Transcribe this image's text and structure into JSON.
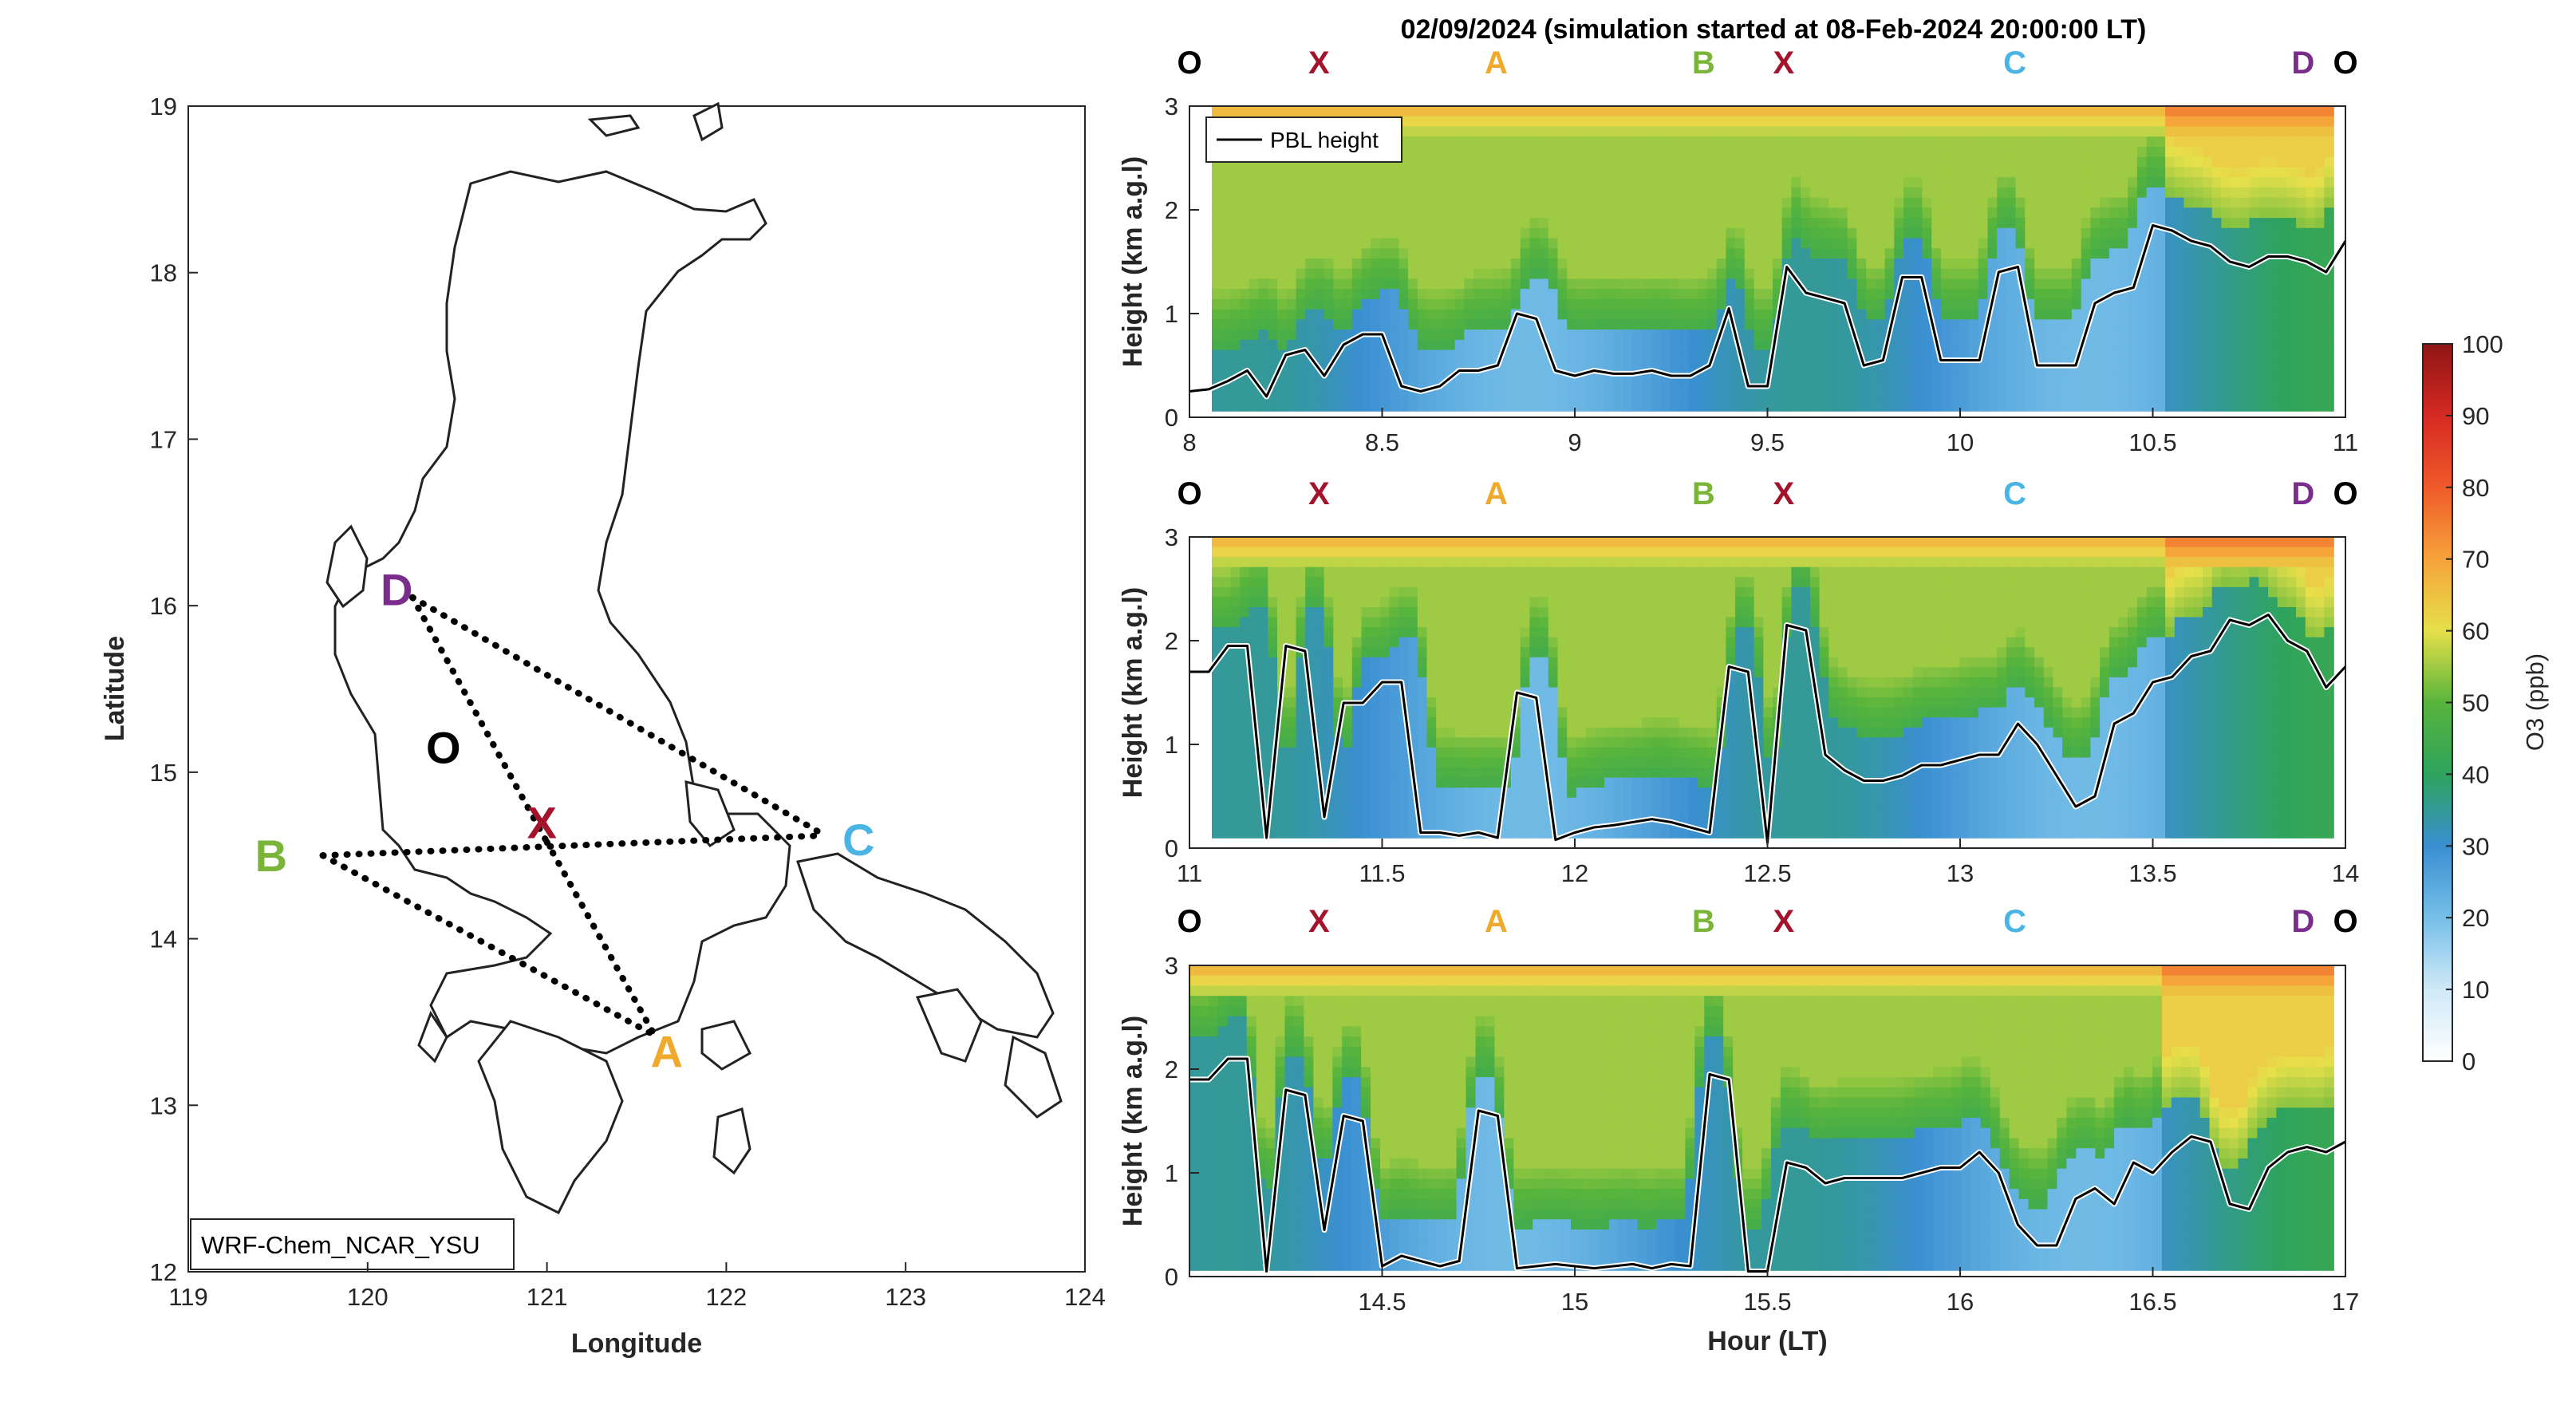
{
  "figure": {
    "title": "02/09/2024 (simulation started at 08-Feb-2024 20:00:00 LT)",
    "model_label": "WRF-Chem_NCAR_YSU",
    "legend_label": "PBL height"
  },
  "map": {
    "xlabel": "Longitude",
    "ylabel": "Latitude",
    "xlim": [
      119,
      124
    ],
    "ylim": [
      12,
      19
    ],
    "xticks": [
      "119",
      "120",
      "121",
      "122",
      "123",
      "124"
    ],
    "yticks": [
      "12",
      "13",
      "14",
      "15",
      "16",
      "17",
      "18",
      "19"
    ],
    "points": [
      {
        "name": "D",
        "lon": 120.25,
        "lat": 16.05,
        "color": "#7b2d8e"
      },
      {
        "name": "O",
        "lon": 120.45,
        "lat": 15.15,
        "color": "#000000"
      },
      {
        "name": "X",
        "lon": 121.0,
        "lat": 14.58,
        "color": "#a3142c"
      },
      {
        "name": "B",
        "lon": 119.75,
        "lat": 14.5,
        "color": "#7ab539"
      },
      {
        "name": "C",
        "lon": 122.55,
        "lat": 14.62,
        "color": "#4ab4e4"
      },
      {
        "name": "A",
        "lon": 121.6,
        "lat": 13.42,
        "color": "#f0a92a"
      }
    ],
    "routes": [
      [
        "D",
        "C"
      ],
      [
        "D",
        "X"
      ],
      [
        "B",
        "C"
      ],
      [
        "B",
        "A"
      ],
      [
        "X",
        "A"
      ]
    ]
  },
  "colorbar": {
    "label": "O3 (ppb)",
    "ticks": [
      "0",
      "10",
      "20",
      "30",
      "40",
      "50",
      "60",
      "70",
      "80",
      "90",
      "100"
    ],
    "range": [
      0,
      100
    ]
  },
  "route_labels": [
    {
      "text": "O",
      "color": "#000000",
      "frac": 0.0
    },
    {
      "text": "X",
      "color": "#a3142c",
      "frac": 0.168
    },
    {
      "text": "A",
      "color": "#f0a92a",
      "frac": 0.398
    },
    {
      "text": "B",
      "color": "#7ab539",
      "frac": 0.667
    },
    {
      "text": "X",
      "color": "#a3142c",
      "frac": 0.771
    },
    {
      "text": "C",
      "color": "#4ab4e4",
      "frac": 1.071
    },
    {
      "text": "D",
      "color": "#7b2d8e",
      "frac": 1.445
    },
    {
      "text": "O",
      "color": "#000000",
      "frac": 1.5
    }
  ],
  "chart_data": [
    {
      "type": "heatmap",
      "ylabel": "Height (km a.g.l)",
      "xlim": [
        8,
        11
      ],
      "ylim": [
        0,
        3
      ],
      "xticks": [
        "8",
        "8.5",
        "9",
        "9.5",
        "10",
        "10.5",
        "11"
      ],
      "yticks": [
        "0",
        "1",
        "2",
        "3"
      ],
      "series": [
        {
          "name": "PBL height",
          "x": [
            8.0,
            8.05,
            8.1,
            8.15,
            8.2,
            8.25,
            8.3,
            8.35,
            8.4,
            8.45,
            8.5,
            8.55,
            8.6,
            8.65,
            8.7,
            8.75,
            8.8,
            8.85,
            8.9,
            8.95,
            9.0,
            9.05,
            9.1,
            9.15,
            9.2,
            9.25,
            9.3,
            9.35,
            9.4,
            9.45,
            9.5,
            9.55,
            9.6,
            9.65,
            9.7,
            9.75,
            9.8,
            9.85,
            9.9,
            9.95,
            10.0,
            10.05,
            10.1,
            10.15,
            10.2,
            10.25,
            10.3,
            10.35,
            10.4,
            10.45,
            10.5,
            10.55,
            10.6,
            10.65,
            10.7,
            10.75,
            10.8,
            10.85,
            10.9,
            10.95,
            11.0
          ],
          "y": [
            0.25,
            0.27,
            0.35,
            0.45,
            0.2,
            0.6,
            0.65,
            0.4,
            0.7,
            0.8,
            0.8,
            0.3,
            0.25,
            0.3,
            0.45,
            0.45,
            0.5,
            1.0,
            0.95,
            0.45,
            0.4,
            0.45,
            0.42,
            0.42,
            0.45,
            0.4,
            0.4,
            0.5,
            1.05,
            0.3,
            0.3,
            1.45,
            1.2,
            1.15,
            1.1,
            0.5,
            0.55,
            1.35,
            1.35,
            0.55,
            0.55,
            0.55,
            1.4,
            1.45,
            0.5,
            0.5,
            0.5,
            1.1,
            1.2,
            1.25,
            1.85,
            1.8,
            1.7,
            1.65,
            1.5,
            1.45,
            1.55,
            1.55,
            1.5,
            1.4,
            1.7
          ]
        }
      ]
    },
    {
      "type": "heatmap",
      "ylabel": "Height (km a.g.l)",
      "xlim": [
        11,
        14
      ],
      "ylim": [
        0,
        3
      ],
      "xticks": [
        "11",
        "11.5",
        "12",
        "12.5",
        "13",
        "13.5",
        "14"
      ],
      "yticks": [
        "0",
        "1",
        "2",
        "3"
      ],
      "series": [
        {
          "name": "PBL height",
          "x": [
            11.0,
            11.05,
            11.1,
            11.15,
            11.2,
            11.25,
            11.3,
            11.35,
            11.4,
            11.45,
            11.5,
            11.55,
            11.6,
            11.65,
            11.7,
            11.75,
            11.8,
            11.85,
            11.9,
            11.95,
            12.0,
            12.05,
            12.1,
            12.15,
            12.2,
            12.25,
            12.3,
            12.35,
            12.4,
            12.45,
            12.5,
            12.55,
            12.6,
            12.65,
            12.7,
            12.75,
            12.8,
            12.85,
            12.9,
            12.95,
            13.0,
            13.05,
            13.1,
            13.15,
            13.2,
            13.25,
            13.3,
            13.35,
            13.4,
            13.45,
            13.5,
            13.55,
            13.6,
            13.65,
            13.7,
            13.75,
            13.8,
            13.85,
            13.9,
            13.95,
            14.0
          ],
          "y": [
            1.7,
            1.7,
            1.95,
            1.95,
            0.1,
            1.95,
            1.9,
            0.3,
            1.4,
            1.4,
            1.6,
            1.6,
            0.15,
            0.15,
            0.12,
            0.15,
            0.1,
            1.5,
            1.45,
            0.08,
            0.15,
            0.2,
            0.22,
            0.25,
            0.28,
            0.25,
            0.2,
            0.15,
            1.75,
            1.7,
            0.05,
            2.15,
            2.1,
            0.9,
            0.75,
            0.65,
            0.65,
            0.7,
            0.8,
            0.8,
            0.85,
            0.9,
            0.9,
            1.2,
            1.0,
            0.7,
            0.4,
            0.5,
            1.2,
            1.3,
            1.6,
            1.65,
            1.85,
            1.9,
            2.2,
            2.15,
            2.25,
            2.0,
            1.9,
            1.55,
            1.75
          ]
        }
      ]
    },
    {
      "type": "heatmap",
      "ylabel": "Height (km a.g.l)",
      "xlabel": "Hour (LT)",
      "xlim": [
        14,
        17
      ],
      "ylim": [
        0,
        3
      ],
      "xticks": [
        "14.5",
        "15",
        "15.5",
        "16",
        "16.5",
        "17"
      ],
      "yticks": [
        "0",
        "1",
        "2",
        "3"
      ],
      "series": [
        {
          "name": "PBL height",
          "x": [
            14.0,
            14.05,
            14.1,
            14.15,
            14.2,
            14.25,
            14.3,
            14.35,
            14.4,
            14.45,
            14.5,
            14.55,
            14.6,
            14.65,
            14.7,
            14.75,
            14.8,
            14.85,
            14.9,
            14.95,
            15.0,
            15.05,
            15.1,
            15.15,
            15.2,
            15.25,
            15.3,
            15.35,
            15.4,
            15.45,
            15.5,
            15.55,
            15.6,
            15.65,
            15.7,
            15.75,
            15.8,
            15.85,
            15.9,
            15.95,
            16.0,
            16.05,
            16.1,
            16.15,
            16.2,
            16.25,
            16.3,
            16.35,
            16.4,
            16.45,
            16.5,
            16.55,
            16.6,
            16.65,
            16.7,
            16.75,
            16.8,
            16.85,
            16.9,
            16.95,
            17.0
          ],
          "y": [
            1.9,
            1.9,
            2.1,
            2.1,
            0.05,
            1.8,
            1.75,
            0.45,
            1.55,
            1.5,
            0.1,
            0.2,
            0.15,
            0.1,
            0.15,
            1.6,
            1.55,
            0.08,
            0.1,
            0.12,
            0.1,
            0.08,
            0.1,
            0.12,
            0.08,
            0.12,
            0.1,
            1.95,
            1.9,
            0.05,
            0.05,
            1.1,
            1.05,
            0.9,
            0.95,
            0.95,
            0.95,
            0.95,
            1.0,
            1.05,
            1.05,
            1.2,
            1.0,
            0.5,
            0.3,
            0.3,
            0.75,
            0.85,
            0.7,
            1.1,
            1.0,
            1.2,
            1.35,
            1.3,
            0.7,
            0.65,
            1.05,
            1.2,
            1.25,
            1.2,
            1.3
          ]
        }
      ]
    }
  ]
}
